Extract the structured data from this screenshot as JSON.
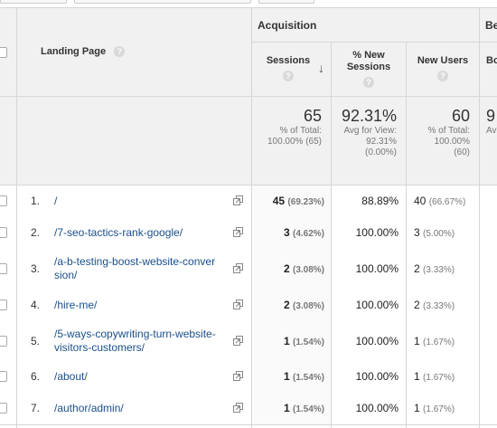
{
  "header": {
    "acquisition_label": "Acquisition",
    "behavior_label": "Be",
    "landing_page_label": "Landing Page",
    "help_glyph": "?",
    "sort_arrow": "↓",
    "col_sessions": "Sessions",
    "col_new_sessions_l1": "% New",
    "col_new_sessions_l2": "Sessions",
    "col_new_users": "New Users",
    "col_bounce_partial": "Bo"
  },
  "totals": {
    "sessions_value": "65",
    "sessions_sub1": "% of Total:",
    "sessions_sub2": "100.00% (65)",
    "new_sessions_value": "92.31%",
    "new_sessions_sub1": "Avg for View:",
    "new_sessions_sub2": "92.31%",
    "new_sessions_sub3": "(0.00%)",
    "new_users_value": "60",
    "new_users_sub1": "% of Total:",
    "new_users_sub2": "100.00%",
    "new_users_sub3": "(60)",
    "bounce_partial": "9",
    "bounce_sub_partial": "Av"
  },
  "rows": [
    {
      "num": "1.",
      "page_l1": "/",
      "page_l2": "",
      "sessions": "45",
      "sessions_pct": "(69.23%)",
      "new_sessions": "88.89%",
      "new_users": "40",
      "new_users_pct": "(66.67%)"
    },
    {
      "num": "2.",
      "page_l1": "/7-seo-tactics-rank-google/",
      "page_l2": "",
      "sessions": "3",
      "sessions_pct": "(4.62%)",
      "new_sessions": "100.00%",
      "new_users": "3",
      "new_users_pct": "(5.00%)"
    },
    {
      "num": "3.",
      "page_l1": "/a-b-testing-boost-website-conver",
      "page_l2": "sion/",
      "sessions": "2",
      "sessions_pct": "(3.08%)",
      "new_sessions": "100.00%",
      "new_users": "2",
      "new_users_pct": "(3.33%)"
    },
    {
      "num": "4.",
      "page_l1": "/hire-me/",
      "page_l2": "",
      "sessions": "2",
      "sessions_pct": "(3.08%)",
      "new_sessions": "100.00%",
      "new_users": "2",
      "new_users_pct": "(3.33%)"
    },
    {
      "num": "5.",
      "page_l1": "/5-ways-copywriting-turn-website-",
      "page_l2": "visitors-customers/",
      "sessions": "1",
      "sessions_pct": "(1.54%)",
      "new_sessions": "100.00%",
      "new_users": "1",
      "new_users_pct": "(1.67%)"
    },
    {
      "num": "6.",
      "page_l1": "/about/",
      "page_l2": "",
      "sessions": "1",
      "sessions_pct": "(1.54%)",
      "new_sessions": "100.00%",
      "new_users": "1",
      "new_users_pct": "(1.67%)"
    },
    {
      "num": "7.",
      "page_l1": "/author/admin/",
      "page_l2": "",
      "sessions": "1",
      "sessions_pct": "(1.54%)",
      "new_sessions": "100.00%",
      "new_users": "1",
      "new_users_pct": "(1.67%)"
    }
  ]
}
